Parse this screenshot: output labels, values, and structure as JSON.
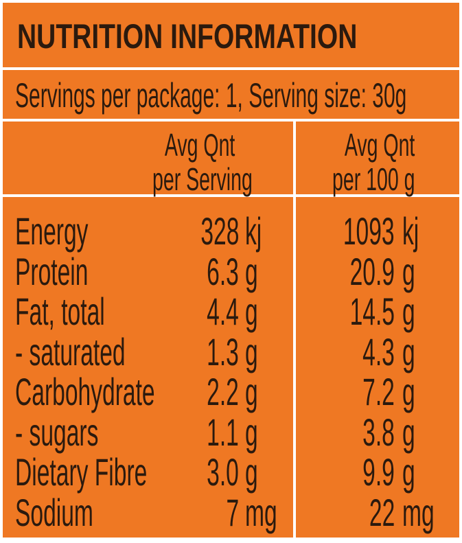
{
  "title": "NUTRITION INFORMATION",
  "servings": "Servings per package: 1, Serving size: 30g",
  "headers": {
    "per_serving": [
      "Avg Qnt",
      "per Serving"
    ],
    "per_100g": [
      "Avg Qnt",
      "per 100 g"
    ]
  },
  "rows": [
    {
      "label": "Energy",
      "serving": "328",
      "serving_unit": "kj",
      "per100": "1093",
      "per100_unit": "kj"
    },
    {
      "label": "Protein",
      "serving": "6.3",
      "serving_unit": "g",
      "per100": "20.9",
      "per100_unit": "g"
    },
    {
      "label": "Fat, total",
      "serving": "4.4",
      "serving_unit": "g",
      "per100": "14.5",
      "per100_unit": "g"
    },
    {
      "label": "- saturated",
      "serving": "1.3",
      "serving_unit": "g",
      "per100": "4.3",
      "per100_unit": "g"
    },
    {
      "label": "Carbohydrate",
      "serving": "2.2",
      "serving_unit": "g",
      "per100": "7.2",
      "per100_unit": "g"
    },
    {
      "label": "- sugars",
      "serving": "1.1",
      "serving_unit": "g",
      "per100": "3.8",
      "per100_unit": "g"
    },
    {
      "label": "Dietary Fibre",
      "serving": "3.0",
      "serving_unit": "g",
      "per100": "9.9",
      "per100_unit": "g"
    },
    {
      "label": "Sodium",
      "serving": "7",
      "serving_unit": "mg",
      "per100": "22",
      "per100_unit": "mg"
    }
  ],
  "colors": {
    "background": "#ef7823",
    "border": "#ffffff",
    "text": "#2b1a0e"
  }
}
